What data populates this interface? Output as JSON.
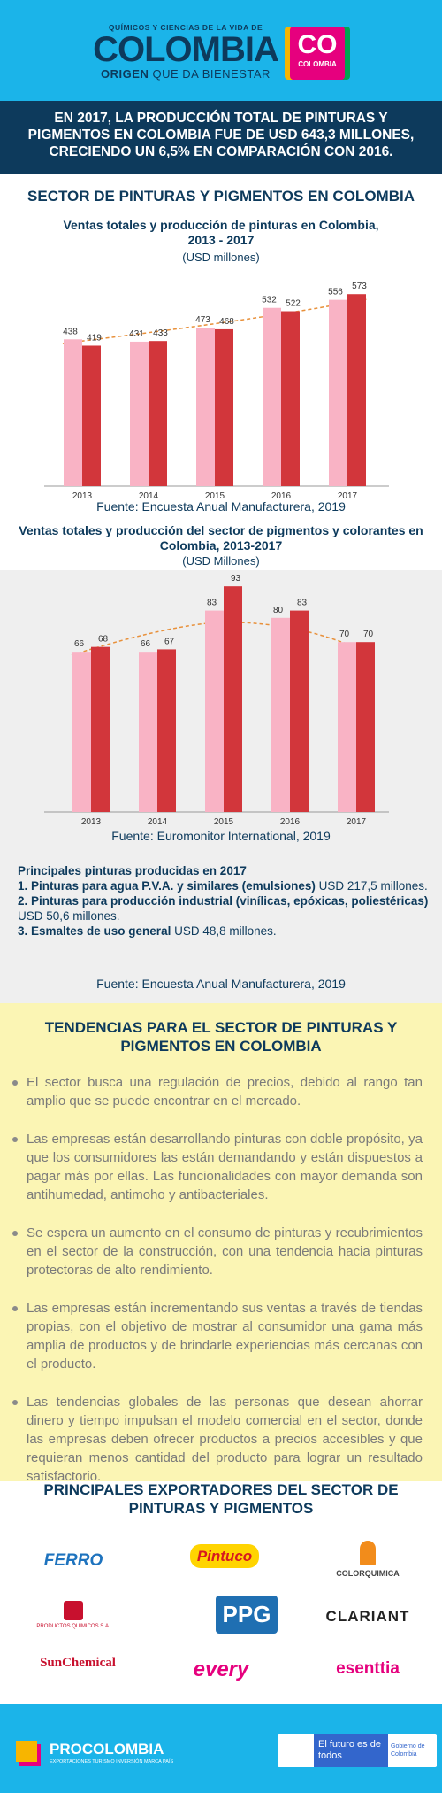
{
  "header": {
    "tagline": "QUÍMICOS Y CIENCIAS DE LA VIDA DE",
    "brand": "COLOMBIA",
    "slogan_1": "ORIGEN",
    "slogan_2": "QUE DA BIENESTAR",
    "badge_1": "CO",
    "badge_2": "COLOMBIA"
  },
  "banner": "EN 2017, LA PRODUCCIÓN TOTAL DE PINTURAS Y PIGMENTOS EN COLOMBIA FUE DE USD 643,3 MILLONES, CRECIENDO UN 6,5% EN COMPARACIÓN CON 2016.",
  "section_title": "SECTOR DE PINTURAS Y PIGMENTOS EN COLOMBIA",
  "chart_data": [
    {
      "type": "bar",
      "title": "Ventas totales y producción de pinturas en Colombia, 2013 - 2017",
      "subtitle": "(USD millones)",
      "categories": [
        "2013",
        "2014",
        "2015",
        "2016",
        "2017"
      ],
      "series": [
        {
          "color": "#f9b3c5",
          "values": [
            438,
            431,
            473,
            532,
            556
          ]
        },
        {
          "color": "#d2363b",
          "values": [
            419,
            433,
            468,
            522,
            573
          ]
        }
      ],
      "ylim": [
        0,
        600
      ],
      "source": "Fuente: Encuesta Anual Manufacturera, 2019"
    },
    {
      "type": "bar",
      "title": "Ventas totales y producción del sector de pigmentos y colorantes en Colombia, 2013-2017",
      "subtitle": "(USD Millones)",
      "categories": [
        "2013",
        "2014",
        "2015",
        "2016",
        "2017"
      ],
      "series": [
        {
          "color": "#f9b3c5",
          "values": [
            66,
            66,
            83,
            80,
            70
          ]
        },
        {
          "color": "#d2363b",
          "values": [
            68,
            67,
            93,
            83,
            70
          ]
        }
      ],
      "ylim": [
        0,
        100
      ],
      "source": "Fuente: Euromonitor International, 2019"
    }
  ],
  "products": {
    "title": "Principales pinturas producidas en 2017",
    "items": [
      {
        "label": "1. Pinturas para agua P.V.A. y similares (emulsiones)",
        "text": " USD 217,5 millones."
      },
      {
        "label": "2. Pinturas para producción industrial (vinílicas, epóxicas, poliestéricas)",
        "text": " USD 50,6 millones."
      },
      {
        "label": "3. Esmaltes de uso general",
        "text": " USD 48,8 millones."
      }
    ],
    "source": "Fuente: Encuesta Anual Manufacturera, 2019"
  },
  "trends": {
    "title": "TENDENCIAS PARA EL SECTOR DE PINTURAS Y PIGMENTOS EN COLOMBIA",
    "items": [
      "El sector busca una regulación de precios, debido al rango tan amplio que se puede encontrar en el mercado.",
      "Las empresas están desarrollando pinturas con doble propósito, ya que los consumidores las están demandando y están dispuestos a pagar más por ellas. Las funcionalidades con mayor demanda son antihumedad, antimoho y antibacteriales.",
      "Se espera un aumento en el consumo de pinturas y recubrimientos en el sector de la construcción, con una tendencia hacia pinturas protectoras de alto rendimiento.",
      "Las empresas están incrementando sus ventas a través de tiendas propias, con el objetivo de mostrar al consumidor una gama más amplia de productos y de brindarle experiencias más cercanas con el producto.",
      "Las tendencias globales de las personas que desean ahorrar dinero y tiempo impulsan el modelo comercial en el sector, donde las empresas deben ofrecer productos a precios accesibles y que requieran menos cantidad del producto para lograr un resultado satisfactorio."
    ]
  },
  "exporters": {
    "title": "PRINCIPALES EXPORTADORES DEL SECTOR DE PINTURAS Y PIGMENTOS",
    "logos": [
      "FERRO",
      "Pintuco",
      "COLORQUIMICA",
      "PRODUCTOS QUIMICOS S.A.",
      "PPG",
      "CLARIANT",
      "SunChemical",
      "every",
      "esenttia"
    ]
  },
  "footer": {
    "brand": "PROCOLOMBIA",
    "tagline": "EXPORTACIONES TURISMO INVERSIÓN MARCA PAÍS",
    "slogan": "El futuro es de todos",
    "government": "Gobierno de Colombia"
  }
}
